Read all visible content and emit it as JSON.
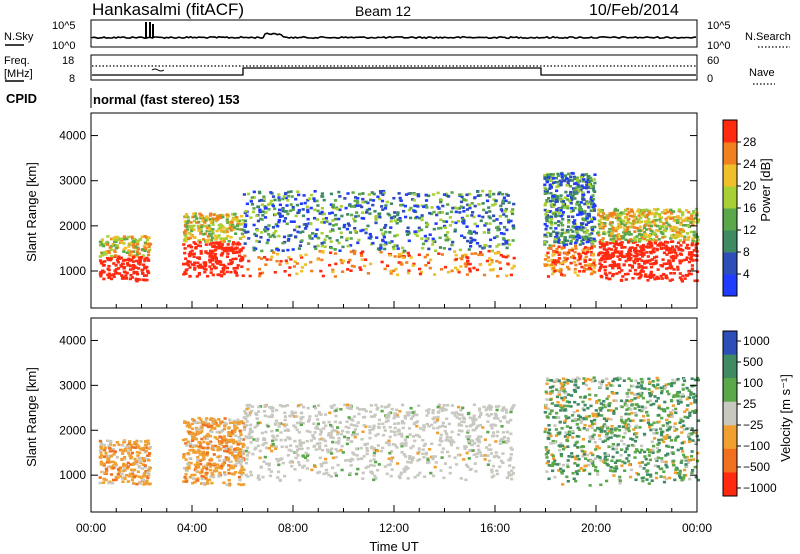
{
  "header": {
    "station": "Hankasalmi (fitACF)",
    "beam": "Beam 12",
    "date": "10/Feb/2014"
  },
  "noise_panel": {
    "left_label": "N.Sky",
    "right_label": "N.Search",
    "left_ticks": [
      "10^5",
      "10^0"
    ],
    "right_ticks": [
      "10^5",
      "10^0"
    ]
  },
  "freq_panel": {
    "left_label_1": "Freq.",
    "left_label_2": "[MHz]",
    "left_ticks": [
      "18",
      "8"
    ],
    "right_label": "Nave",
    "right_ticks": [
      "60",
      "0"
    ]
  },
  "cpid": {
    "label": "CPID",
    "value": "normal (fast stereo) 153"
  },
  "colors": {
    "power": [
      "#1f3cff",
      "#2d4db8",
      "#3d8a63",
      "#5aa84a",
      "#a8d034",
      "#f0c02a",
      "#f08020",
      "#ff2a10"
    ],
    "velocity": [
      "#2d4db8",
      "#3d8a63",
      "#5aa84a",
      "#c8c8c0",
      "#f0a030",
      "#f07020",
      "#ff2a10"
    ]
  },
  "chart_data": [
    {
      "type": "heatmap",
      "parameter": "power",
      "xlabel": "",
      "ylabel": "Slant Range [km]",
      "x_range": [
        "00:00",
        "24:00"
      ],
      "ylim": [
        180,
        4500
      ],
      "y_ticks": [
        "1000",
        "2000",
        "3000",
        "4000"
      ],
      "colorbar_label": "Power [dB]",
      "colorbar_ticks": [
        "4",
        "8",
        "12",
        "16",
        "20",
        "24",
        "28"
      ],
      "colorbar_range": [
        0,
        32
      ],
      "regions": [
        {
          "x": [
            0.3,
            2.3
          ],
          "y": [
            800,
            1800
          ],
          "level": "high"
        },
        {
          "x": [
            3.6,
            6.0
          ],
          "y": [
            900,
            2300
          ],
          "level": "high"
        },
        {
          "x": [
            6.0,
            16.7
          ],
          "y": [
            900,
            2800
          ],
          "level": "medium"
        },
        {
          "x": [
            17.9,
            19.9
          ],
          "y": [
            900,
            3200
          ],
          "level": "medium"
        },
        {
          "x": [
            20.0,
            24.0
          ],
          "y": [
            800,
            2400
          ],
          "level": "high"
        }
      ]
    },
    {
      "type": "heatmap",
      "parameter": "velocity",
      "xlabel": "Time UT",
      "ylabel": "Slant Range [km]",
      "x_range": [
        "00:00",
        "24:00"
      ],
      "x_ticks": [
        "00:00",
        "04:00",
        "08:00",
        "12:00",
        "16:00",
        "20:00",
        "00:00"
      ],
      "ylim": [
        180,
        4500
      ],
      "y_ticks": [
        "1000",
        "2000",
        "3000",
        "4000"
      ],
      "colorbar_label": "Velocity [m s⁻¹]",
      "colorbar_ticks": [
        "1000",
        "500",
        "100",
        "25",
        "−25",
        "−100",
        "−500",
        "−1000"
      ],
      "regions": [
        {
          "x": [
            0.3,
            2.3
          ],
          "y": [
            800,
            1800
          ],
          "sign": "negative"
        },
        {
          "x": [
            3.6,
            6.0
          ],
          "y": [
            800,
            2300
          ],
          "sign": "negative"
        },
        {
          "x": [
            6.0,
            16.7
          ],
          "y": [
            900,
            2600
          ],
          "sign": "near-zero"
        },
        {
          "x": [
            17.9,
            24.0
          ],
          "y": [
            800,
            3200
          ],
          "sign": "positive"
        }
      ]
    }
  ]
}
